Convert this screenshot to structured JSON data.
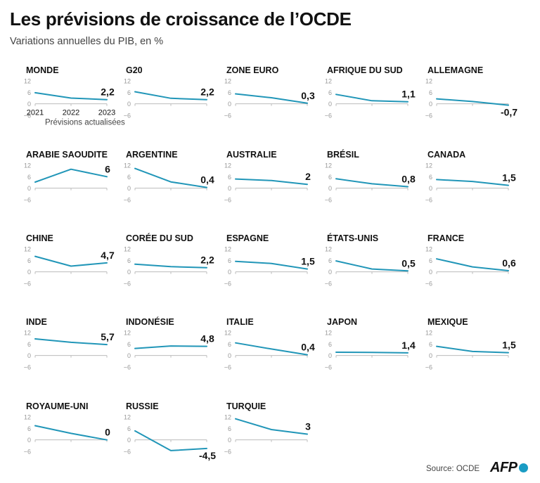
{
  "title": "Les prévisions de croissance de l’OCDE",
  "subtitle": "Variations annuelles du PIB, en %",
  "legend_note": "Prévisions actualisées",
  "source": "Source: OCDE",
  "logo_text": "AFP",
  "colors": {
    "line": "#2196b8",
    "axis": "#bbbbbb",
    "tick_text": "#999999",
    "text": "#111111"
  },
  "chart_data": {
    "type": "line",
    "ylim": [
      -6,
      12
    ],
    "y_ticks": [
      "12",
      "6",
      "0",
      "−6"
    ],
    "x_ticks": [
      "2021",
      "2022",
      "2023"
    ],
    "panels": [
      {
        "name": "MONDE",
        "values": [
          5.8,
          3,
          2.2
        ],
        "label": "2,2"
      },
      {
        "name": "G20",
        "values": [
          6.3,
          2.9,
          2.2
        ],
        "label": "2,2"
      },
      {
        "name": "ZONE EURO",
        "values": [
          5.2,
          3.2,
          0.3
        ],
        "label": "0,3"
      },
      {
        "name": "AFRIQUE DU SUD",
        "values": [
          4.9,
          1.6,
          1.1
        ],
        "label": "1,1"
      },
      {
        "name": "ALLEMAGNE",
        "values": [
          2.6,
          1.2,
          -0.7
        ],
        "label": "-0,7"
      },
      {
        "name": "ARABIE SAOUDITE",
        "values": [
          3.2,
          9.9,
          6
        ],
        "label": "6"
      },
      {
        "name": "ARGENTINE",
        "values": [
          10.3,
          3.3,
          0.4
        ],
        "label": "0,4"
      },
      {
        "name": "AUSTRALIE",
        "values": [
          4.8,
          4,
          2
        ],
        "label": "2"
      },
      {
        "name": "BRÉSIL",
        "values": [
          4.9,
          2.3,
          0.8
        ],
        "label": "0,8"
      },
      {
        "name": "CANADA",
        "values": [
          4.5,
          3.5,
          1.5
        ],
        "label": "1,5"
      },
      {
        "name": "CHINE",
        "values": [
          8.1,
          3,
          4.7
        ],
        "label": "4,7"
      },
      {
        "name": "CORÉE DU SUD",
        "values": [
          4,
          2.7,
          2.2
        ],
        "label": "2,2"
      },
      {
        "name": "ESPAGNE",
        "values": [
          5.5,
          4.4,
          1.5
        ],
        "label": "1,5"
      },
      {
        "name": "ÉTATS-UNIS",
        "values": [
          5.7,
          1.5,
          0.5
        ],
        "label": "0,5"
      },
      {
        "name": "FRANCE",
        "values": [
          6.8,
          2.6,
          0.6
        ],
        "label": "0,6"
      },
      {
        "name": "INDE",
        "values": [
          8.7,
          6.9,
          5.7
        ],
        "label": "5,7"
      },
      {
        "name": "INDONÉSIE",
        "values": [
          3.7,
          5,
          4.8
        ],
        "label": "4,8"
      },
      {
        "name": "ITALIE",
        "values": [
          6.6,
          3.4,
          0.4
        ],
        "label": "0,4"
      },
      {
        "name": "JAPON",
        "values": [
          1.7,
          1.6,
          1.4
        ],
        "label": "1,4"
      },
      {
        "name": "MEXIQUE",
        "values": [
          4.8,
          2.1,
          1.5
        ],
        "label": "1,5"
      },
      {
        "name": "ROYAUME-UNI",
        "values": [
          7.4,
          3.4,
          0
        ],
        "label": "0"
      },
      {
        "name": "RUSSIE",
        "values": [
          4.7,
          -5.6,
          -4.5
        ],
        "label": "-4,5"
      },
      {
        "name": "TURQUIE",
        "values": [
          11,
          5.4,
          3
        ],
        "label": "3"
      }
    ]
  }
}
